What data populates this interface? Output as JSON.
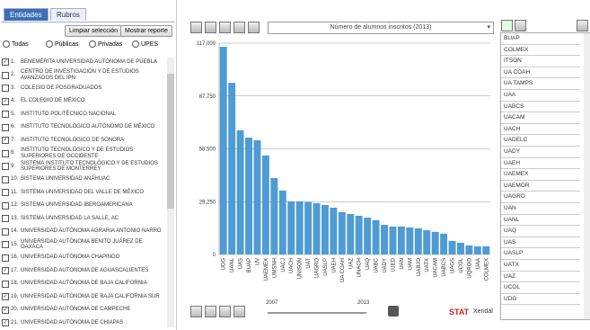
{
  "left_panel": {
    "tabs": [
      "Entidades",
      "Rubros"
    ],
    "buttons": [
      "Limpiar selección",
      "Mostrar reporte"
    ],
    "filters": [
      "Todas",
      "Públicas",
      "Privadas",
      "UPES"
    ],
    "institutions": [
      {
        "num": "1.",
        "name": "BENEMÉRITA UNIVERSIDAD AUTÓNOMA DE PUEBLA",
        "checked": true
      },
      {
        "num": "2.",
        "name": "CENTRO DE INVESTIGACIÓN Y DE ESTUDIOS AVANZADOS DEL IPN",
        "checked": false
      },
      {
        "num": "3.",
        "name": "COLEGIO DE POSGRADUADOS",
        "checked": false
      },
      {
        "num": "4.",
        "name": "EL COLEGIO DE MÉXICO",
        "checked": true
      },
      {
        "num": "5.",
        "name": "INSTITUTO POLITÉCNICO NACIONAL",
        "checked": false
      },
      {
        "num": "6.",
        "name": "INSTITUTO TECNOLÓGICO AUTÓNOMO DE MÉXICO",
        "checked": false
      },
      {
        "num": "7.",
        "name": "INSTITUTO TECNOLÓGICO DE SONORA",
        "checked": true
      },
      {
        "num": "8.",
        "name": "INSTITUTO TECNOLÓGICO Y DE ESTUDIOS SUPERIORES DE OCCIDENTE",
        "checked": false
      },
      {
        "num": "9.",
        "name": "SISTEMA INSTITUTO TECNOLÓGICO Y DE ESTUDIOS SUPERIORES DE MONTERREY",
        "checked": false
      },
      {
        "num": "10.",
        "name": "SISTEMA UNIVERSIDAD ANÁHUAC",
        "checked": false
      },
      {
        "num": "11.",
        "name": "SISTEMA UNIVERSIDAD DEL VALLE DE MÉXICO",
        "checked": false
      },
      {
        "num": "12.",
        "name": "SISTEMA UNIVERSIDAD IBEROAMERICANA",
        "checked": false
      },
      {
        "num": "13.",
        "name": "SISTEMA UNIVERSIDAD LA SALLE, AC",
        "checked": false
      },
      {
        "num": "14.",
        "name": "UNIVERSIDAD AUTÓNOMA AGRARIA ANTONIO NARRO",
        "checked": false
      },
      {
        "num": "15.",
        "name": "UNIVERSIDAD AUTÓNOMA BENITO JUÁREZ DE OAXACA",
        "checked": false
      },
      {
        "num": "16.",
        "name": "UNIVERSIDAD AUTÓNOMA CHAPINGO",
        "checked": false
      },
      {
        "num": "17.",
        "name": "UNIVERSIDAD AUTÓNOMA DE AGUASCALIENTES",
        "checked": true
      },
      {
        "num": "18.",
        "name": "UNIVERSIDAD AUTÓNOMA DE BAJA CALIFORNIA",
        "checked": false
      },
      {
        "num": "19.",
        "name": "UNIVERSIDAD AUTÓNOMA DE BAJA CALIFORNIA SUR",
        "checked": true
      },
      {
        "num": "20.",
        "name": "UNIVERSIDAD AUTÓNOMA DE CAMPECHE",
        "checked": true
      },
      {
        "num": "21.",
        "name": "UNIVERSIDAD AUTÓNOMA DE CHIAPAS",
        "checked": true
      }
    ]
  },
  "chart_data": {
    "type": "bar",
    "title": "Número de alumnos inscritos (2013)",
    "categories": [
      "UDG",
      "UANL",
      "UAS",
      "BUAP",
      "UV",
      "UAEMEX",
      "UMSNH",
      "UACJ",
      "UACH",
      "UNISON",
      "UAT",
      "UAGRO",
      "UASLP",
      "UAEH",
      "UA COAH",
      "UAZ",
      "UNACH",
      "UAQ",
      "UABC",
      "UADY",
      "UJED",
      "UAN",
      "UAM",
      "UABJO",
      "UATX",
      "UACAM",
      "UABCS",
      "UAGS",
      "UCOL",
      "UQROO",
      "UAA",
      "COLMEX"
    ],
    "values": [
      115000,
      95000,
      68700,
      64700,
      63200,
      54800,
      42300,
      35400,
      29400,
      29400,
      29000,
      28400,
      27400,
      25900,
      23400,
      22400,
      21400,
      20400,
      19000,
      16400,
      15500,
      15500,
      15000,
      14500,
      13400,
      12500,
      11500,
      7500,
      6500,
      5000,
      4500,
      4500
    ],
    "color": "#4f9bd3",
    "ylim": [
      0,
      117000
    ],
    "yticks": [
      0,
      {
        "value": 29250,
        "label": "29,250"
      },
      {
        "value": 58500,
        "label": "58,500"
      },
      {
        "value": 87750,
        "label": "87,750"
      },
      {
        "value": 117000,
        "label": "117,000"
      }
    ],
    "grid": true
  },
  "slider": {
    "start": "2007",
    "end": "2013"
  },
  "right_list": [
    "BUAP",
    "COLMEX",
    "ITSON",
    "UA COAH",
    "UA TAMPS",
    "UAA",
    "UABCS",
    "UACAM",
    "UACH",
    "UADELC",
    "UADY",
    "UAEH",
    "UAEMEX",
    "UAEMOR",
    "UAGRO",
    "UAN",
    "UANL",
    "UAQ",
    "UAS",
    "UASLP",
    "UATX",
    "UAZ",
    "UCOL",
    "UDG"
  ],
  "logo": {
    "brand": "STAT",
    "maker": "Xendal"
  }
}
